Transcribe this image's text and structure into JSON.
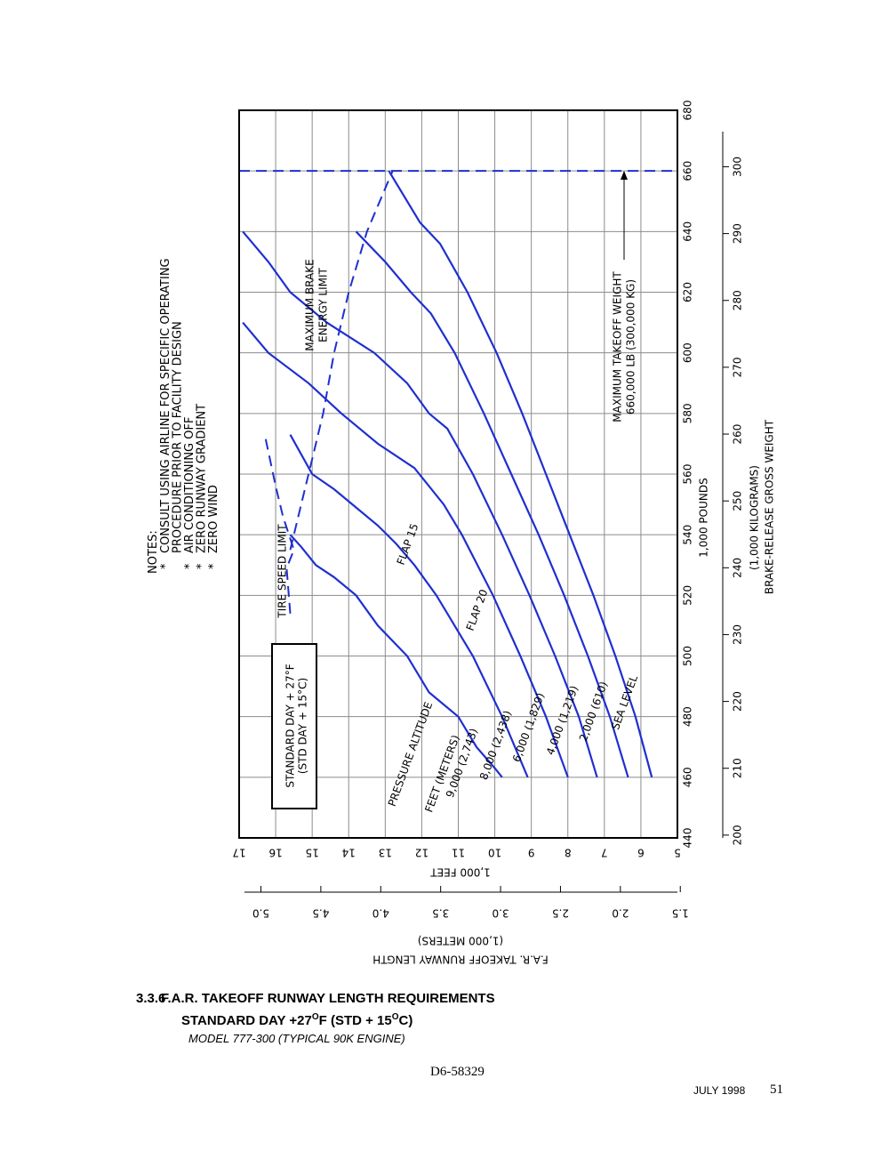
{
  "page": {
    "section_number": "3.3.6",
    "title_line1": "F.A.R. TAKEOFF RUNWAY LENGTH REQUIREMENTS",
    "title_line2_a": "STANDARD DAY +27",
    "title_line2_sup1": "O",
    "title_line2_b": "F (STD +  15",
    "title_line2_sup2": "O",
    "title_line2_c": "C)",
    "title_line3": "MODEL  777-300 (TYPICAL 90K ENGINE)",
    "doc_number": "D6-58329",
    "date": "JULY 1998",
    "page_number": "51"
  },
  "chart_data": {
    "type": "line",
    "orientation": "rotated 90° counter-clockwise",
    "notes_header": "NOTES:",
    "notes": [
      {
        "mark": "*",
        "lines": [
          "CONSULT USING AIRLINE FOR SPECIFIC OPERATING",
          "PROCEDURE PRIOR TO FACILITY DESIGN"
        ]
      },
      {
        "mark": "*",
        "lines": [
          "AIR CONDITIONING OFF"
        ]
      },
      {
        "mark": "*",
        "lines": [
          "ZERO RUNWAY GRADIENT"
        ]
      },
      {
        "mark": "*",
        "lines": [
          "ZERO WIND"
        ]
      }
    ],
    "condition_box": [
      "STANDARD DAY + 27°F",
      "(STD DAY + 15°C)"
    ],
    "x_axis": {
      "label_lines": [
        "1,000 POUNDS",
        "(1,000 KILOGRAMS)",
        "BRAKE-RELEASE GROSS WEIGHT"
      ],
      "range": [
        440,
        680
      ],
      "ticks": [
        "440",
        "460",
        "480",
        "500",
        "520",
        "540",
        "560",
        "580",
        "600",
        "620",
        "640",
        "660",
        "680"
      ],
      "secondary_ticks": [
        "200",
        "210",
        "220",
        "230",
        "240",
        "250",
        "260",
        "270",
        "280",
        "290",
        "300"
      ]
    },
    "y_axis": {
      "label": "1,000 FEET",
      "range": [
        5,
        17
      ],
      "ticks": [
        "5",
        "6",
        "7",
        "8",
        "9",
        "10",
        "11",
        "12",
        "13",
        "14",
        "15",
        "16",
        "17"
      ],
      "secondary_label_lines": [
        "F.A.R. TAKEOFF RUNWAY LENGTH",
        "(1,000 METERS)"
      ],
      "secondary_ticks": [
        "1.5",
        "2.0",
        "2.5",
        "3.0",
        "3.5",
        "4.0",
        "4.5",
        "5.0"
      ]
    },
    "grid": true,
    "altitude_header": [
      "PRESSURE ALTITUDE",
      "FEET      (METERS)"
    ],
    "series": [
      {
        "name": "SEA LEVEL",
        "label": "SEA LEVEL",
        "x": [
          460,
          480,
          500,
          520,
          540,
          560,
          580,
          600,
          620,
          636,
          643,
          660
        ],
        "y": [
          5.7,
          6.15,
          6.7,
          7.3,
          7.95,
          8.6,
          9.25,
          9.95,
          10.75,
          11.5,
          12.05,
          12.9
        ]
      },
      {
        "name": "2,000",
        "label": "2,000     (610)",
        "x": [
          460,
          480,
          500,
          520,
          540,
          560,
          580,
          600,
          613,
          620,
          630,
          640
        ],
        "y": [
          6.35,
          6.85,
          7.45,
          8.1,
          8.8,
          9.55,
          10.3,
          11.1,
          11.75,
          12.3,
          13.0,
          13.8
        ]
      },
      {
        "name": "4,000",
        "label": "4,000     (1,219)",
        "x": [
          460,
          480,
          500,
          520,
          540,
          560,
          575,
          580,
          590,
          600,
          610,
          620,
          630,
          640
        ],
        "y": [
          7.2,
          7.7,
          8.35,
          9.05,
          9.8,
          10.6,
          11.3,
          11.8,
          12.4,
          13.3,
          14.6,
          15.6,
          16.2,
          16.9
        ]
      },
      {
        "name": "6,000",
        "label": "6,000     (1,829)",
        "x": [
          460,
          480,
          500,
          520,
          540,
          550,
          562,
          570,
          580,
          590,
          600,
          610
        ],
        "y": [
          8.0,
          8.6,
          9.3,
          10.05,
          10.9,
          11.4,
          12.2,
          13.2,
          14.2,
          15.1,
          16.2,
          16.9
        ]
      },
      {
        "name": "8,000",
        "label": "8,000     (2,438)",
        "x": [
          460,
          480,
          500,
          520,
          530,
          537,
          543,
          550,
          555,
          560,
          573
        ],
        "y": [
          9.1,
          9.8,
          10.6,
          11.6,
          12.2,
          12.7,
          13.2,
          13.9,
          14.4,
          15.0,
          15.6
        ]
      },
      {
        "name": "9,000",
        "label": "9,000     (2,743)",
        "x": [
          460,
          463,
          470,
          480,
          488,
          500,
          510,
          520,
          526,
          530,
          536,
          540
        ],
        "y": [
          9.8,
          10.0,
          10.5,
          11.0,
          11.8,
          12.4,
          13.2,
          13.8,
          14.4,
          14.9,
          15.3,
          15.6
        ]
      }
    ],
    "flap_labels": [
      "FLAP 15",
      "FLAP 20"
    ],
    "limits": [
      {
        "name": "TIRE SPEED LIMIT",
        "label": "TIRE SPEED LIMIT",
        "style": "dashed",
        "x": [
          514,
          529,
          535,
          546,
          556,
          573
        ],
        "y": [
          15.6,
          15.7,
          15.5,
          15.8,
          16.0,
          16.3
        ]
      },
      {
        "name": "MAXIMUM BRAKE ENERGY LIMIT",
        "label_lines": [
          "MAXIMUM BRAKE",
          "ENERGY LIMIT"
        ],
        "style": "dashed",
        "x": [
          535,
          550,
          565,
          580,
          600,
          620,
          640,
          660
        ],
        "y": [
          15.6,
          15.3,
          15.0,
          14.7,
          14.4,
          14.0,
          13.5,
          12.8
        ]
      },
      {
        "name": "MAXIMUM TAKEOFF WEIGHT",
        "label_lines": [
          "MAXIMUM TAKEOFF WEIGHT",
          "660,000 LB (300,000 KG)"
        ],
        "style": "dashed",
        "x": [
          660,
          660
        ],
        "y": [
          5,
          17
        ]
      }
    ],
    "colors": {
      "curve": "#1f2fd0",
      "grid": "#8c8c8c",
      "frame": "#000000"
    }
  }
}
